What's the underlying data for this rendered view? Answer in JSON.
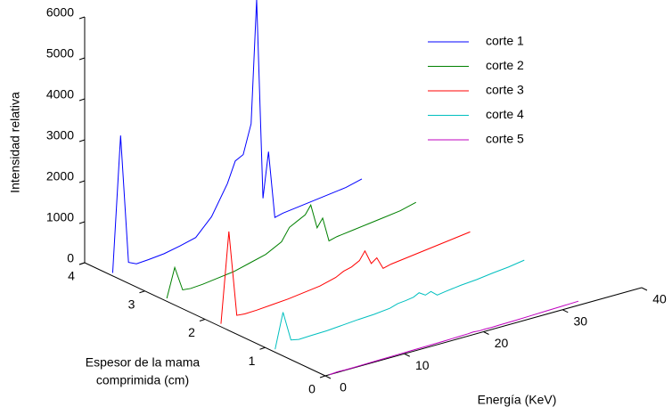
{
  "chart_data": {
    "type": "line3d",
    "xlabel": "Energía (KeV)",
    "ylabel": [
      "Espesor de la mama",
      "comprimida (cm)"
    ],
    "zlabel": "Intensidad relativa",
    "x": [
      0.5,
      1.5,
      2.5,
      3.5,
      5,
      7,
      9,
      11,
      13,
      15,
      16,
      17,
      18,
      18.7,
      19.5,
      20.2,
      21,
      22,
      24,
      26,
      28,
      30,
      32
    ],
    "series": [
      {
        "name": "corte 1",
        "color": "#0000ff",
        "y": 3.6,
        "values": [
          0,
          3300,
          150,
          60,
          80,
          120,
          200,
          300,
          700,
          1400,
          1900,
          2000,
          2700,
          5700,
          800,
          1900,
          250,
          300,
          350,
          400,
          450,
          500,
          600
        ]
      },
      {
        "name": "corte 2",
        "color": "#008000",
        "y": 2.7,
        "values": [
          0,
          700,
          100,
          80,
          100,
          150,
          200,
          300,
          400,
          600,
          900,
          1000,
          1100,
          1300,
          700,
          900,
          300,
          350,
          400,
          450,
          500,
          550,
          650
        ]
      },
      {
        "name": "corte 3",
        "color": "#ff0000",
        "y": 1.8,
        "values": [
          0,
          2200,
          100,
          80,
          90,
          120,
          150,
          200,
          250,
          350,
          450,
          500,
          600,
          800,
          450,
          550,
          250,
          300,
          350,
          400,
          450,
          500,
          550
        ]
      },
      {
        "name": "corte 4",
        "color": "#00bfbf",
        "y": 0.9,
        "values": [
          0,
          850,
          120,
          80,
          90,
          100,
          130,
          160,
          180,
          220,
          280,
          300,
          330,
          400,
          300,
          350,
          220,
          250,
          300,
          330,
          380,
          420,
          480
        ]
      },
      {
        "name": "corte 5",
        "color": "#bf00bf",
        "y": 0,
        "values": [
          0,
          15,
          10,
          10,
          15,
          20,
          25,
          30,
          35,
          40,
          45,
          50,
          55,
          65,
          50,
          55,
          50,
          55,
          60,
          70,
          80,
          90,
          100
        ]
      }
    ],
    "xlim": [
      0,
      40
    ],
    "xticks": [
      0,
      10,
      20,
      30,
      40
    ],
    "ylim": [
      0,
      4
    ],
    "yticks": [
      0,
      1,
      2,
      3,
      4
    ],
    "zlim": [
      0,
      6000
    ],
    "zticks": [
      0,
      1000,
      2000,
      3000,
      4000,
      5000,
      6000
    ],
    "legend": "upper right"
  }
}
